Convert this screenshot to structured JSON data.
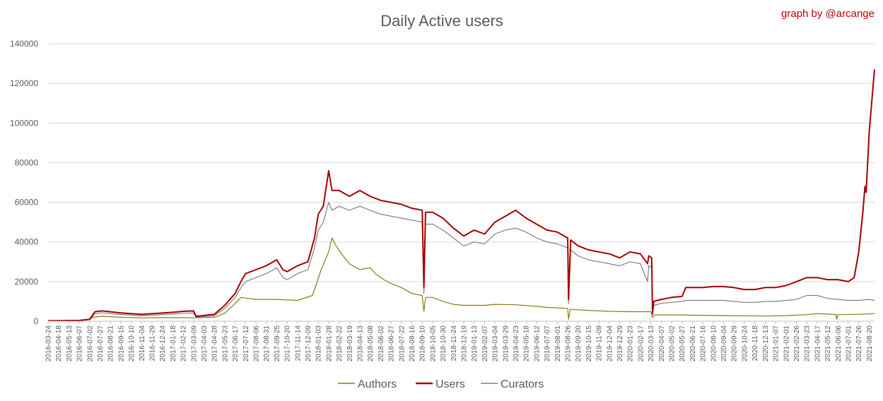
{
  "chart_data": {
    "type": "line",
    "title": "Daily Active users",
    "credit": "graph by @arcange",
    "xlabel": "",
    "ylabel": "",
    "ylim": [
      0,
      140000
    ],
    "y_ticks": [
      0,
      20000,
      40000,
      60000,
      80000,
      100000,
      120000,
      140000
    ],
    "grid": true,
    "legend_position": "bottom",
    "x_tick_labels": [
      "2016-03-24",
      "2016-04-18",
      "2016-05-13",
      "2016-06-07",
      "2016-07-02",
      "2016-07-27",
      "2016-08-21",
      "2016-09-15",
      "2016-10-10",
      "2016-11-04",
      "2016-11-29",
      "2016-12-24",
      "2017-01-18",
      "2017-02-12",
      "2017-03-09",
      "2017-04-03",
      "2017-04-28",
      "2017-05-23",
      "2017-06-17",
      "2017-07-12",
      "2017-08-06",
      "2017-08-31",
      "2017-09-25",
      "2017-10-20",
      "2017-11-14",
      "2017-12-09",
      "2018-01-03",
      "2018-01-28",
      "2018-02-22",
      "2018-03-19",
      "2018-04-13",
      "2018-05-08",
      "2018-06-02",
      "2018-06-27",
      "2018-07-22",
      "2018-08-16",
      "2018-09-10",
      "2018-10-05",
      "2018-10-30",
      "2018-11-24",
      "2018-12-19",
      "2019-01-13",
      "2019-02-07",
      "2019-03-04",
      "2019-03-29",
      "2019-04-23",
      "2019-05-18",
      "2019-06-12",
      "2019-07-07",
      "2019-08-01",
      "2019-08-26",
      "2019-09-20",
      "2019-10-15",
      "2019-11-09",
      "2019-12-04",
      "2019-12-29",
      "2020-01-23",
      "2020-02-17",
      "2020-03-13",
      "2020-04-07",
      "2020-05-02",
      "2020-05-27",
      "2020-06-21",
      "2020-07-16",
      "2020-08-10",
      "2020-09-04",
      "2020-09-29",
      "2020-10-24",
      "2020-11-18",
      "2020-12-13",
      "2021-01-07",
      "2021-02-01",
      "2021-02-26",
      "2021-03-23",
      "2021-04-17",
      "2021-05-12",
      "2021-06-06",
      "2021-07-01",
      "2021-07-26",
      "2021-08-20"
    ],
    "x_start": "2016-03-24",
    "x_end": "2021-09-02",
    "series": [
      {
        "name": "Authors",
        "color": "#8b7a14",
        "points": [
          [
            "2016-03-24",
            100
          ],
          [
            "2016-06-07",
            300
          ],
          [
            "2016-07-02",
            800
          ],
          [
            "2016-07-10",
            2000
          ],
          [
            "2016-08-01",
            2500
          ],
          [
            "2016-09-15",
            2000
          ],
          [
            "2016-11-04",
            1700
          ],
          [
            "2017-01-18",
            1800
          ],
          [
            "2017-03-09",
            1700
          ],
          [
            "2017-04-28",
            2000
          ],
          [
            "2017-05-23",
            4000
          ],
          [
            "2017-06-17",
            9000
          ],
          [
            "2017-07-01",
            12000
          ],
          [
            "2017-08-06",
            11000
          ],
          [
            "2017-09-25",
            11000
          ],
          [
            "2017-11-14",
            10500
          ],
          [
            "2017-12-20",
            13000
          ],
          [
            "2018-01-10",
            26000
          ],
          [
            "2018-01-28",
            35000
          ],
          [
            "2018-02-05",
            42000
          ],
          [
            "2018-02-15",
            38000
          ],
          [
            "2018-02-28",
            34000
          ],
          [
            "2018-03-19",
            29000
          ],
          [
            "2018-04-13",
            26000
          ],
          [
            "2018-05-08",
            27000
          ],
          [
            "2018-05-20",
            24000
          ],
          [
            "2018-06-10",
            21000
          ],
          [
            "2018-06-27",
            19000
          ],
          [
            "2018-07-22",
            17000
          ],
          [
            "2018-08-16",
            14000
          ],
          [
            "2018-09-10",
            13000
          ],
          [
            "2018-09-14",
            5000
          ],
          [
            "2018-09-18",
            12000
          ],
          [
            "2018-10-05",
            12000
          ],
          [
            "2018-10-30",
            10000
          ],
          [
            "2018-11-24",
            8500
          ],
          [
            "2018-12-19",
            8000
          ],
          [
            "2019-01-13",
            8000
          ],
          [
            "2019-02-07",
            8000
          ],
          [
            "2019-03-04",
            8500
          ],
          [
            "2019-04-23",
            8300
          ],
          [
            "2019-06-12",
            7500
          ],
          [
            "2019-07-07",
            7000
          ],
          [
            "2019-08-26",
            6500
          ],
          [
            "2019-08-28",
            1000
          ],
          [
            "2019-09-01",
            6000
          ],
          [
            "2019-10-15",
            5500
          ],
          [
            "2019-12-04",
            5000
          ],
          [
            "2020-01-23",
            4800
          ],
          [
            "2020-03-13",
            4800
          ],
          [
            "2020-03-17",
            2000
          ],
          [
            "2020-03-22",
            3200
          ],
          [
            "2020-05-02",
            3200
          ],
          [
            "2020-07-16",
            3000
          ],
          [
            "2020-09-29",
            2800
          ],
          [
            "2020-12-13",
            2600
          ],
          [
            "2021-02-01",
            2800
          ],
          [
            "2021-03-23",
            3300
          ],
          [
            "2021-04-17",
            3800
          ],
          [
            "2021-05-12",
            3600
          ],
          [
            "2021-06-01",
            3400
          ],
          [
            "2021-06-03",
            1000
          ],
          [
            "2021-06-06",
            3300
          ],
          [
            "2021-07-26",
            3500
          ],
          [
            "2021-09-02",
            3800
          ]
        ]
      },
      {
        "name": "Users",
        "color": "#a50000",
        "points": [
          [
            "2016-03-24",
            200
          ],
          [
            "2016-06-07",
            400
          ],
          [
            "2016-07-02",
            1000
          ],
          [
            "2016-07-15",
            4800
          ],
          [
            "2016-08-01",
            5200
          ],
          [
            "2016-09-15",
            4200
          ],
          [
            "2016-11-04",
            3500
          ],
          [
            "2017-01-18",
            4500
          ],
          [
            "2017-02-12",
            5000
          ],
          [
            "2017-03-09",
            5200
          ],
          [
            "2017-03-15",
            2500
          ],
          [
            "2017-04-28",
            3500
          ],
          [
            "2017-05-23",
            8000
          ],
          [
            "2017-06-17",
            14000
          ],
          [
            "2017-07-01",
            20000
          ],
          [
            "2017-07-12",
            24000
          ],
          [
            "2017-08-06",
            26000
          ],
          [
            "2017-08-31",
            28000
          ],
          [
            "2017-09-25",
            31000
          ],
          [
            "2017-10-10",
            26000
          ],
          [
            "2017-10-20",
            25000
          ],
          [
            "2017-11-14",
            28000
          ],
          [
            "2017-12-09",
            30000
          ],
          [
            "2017-12-25",
            42000
          ],
          [
            "2018-01-03",
            54000
          ],
          [
            "2018-01-15",
            58000
          ],
          [
            "2018-01-28",
            76000
          ],
          [
            "2018-02-05",
            66000
          ],
          [
            "2018-02-22",
            66000
          ],
          [
            "2018-03-19",
            63000
          ],
          [
            "2018-04-13",
            66000
          ],
          [
            "2018-05-08",
            63000
          ],
          [
            "2018-06-02",
            61000
          ],
          [
            "2018-06-27",
            60000
          ],
          [
            "2018-07-22",
            59000
          ],
          [
            "2018-08-16",
            57000
          ],
          [
            "2018-09-10",
            56000
          ],
          [
            "2018-09-14",
            17000
          ],
          [
            "2018-09-18",
            55000
          ],
          [
            "2018-10-05",
            55000
          ],
          [
            "2018-10-30",
            52000
          ],
          [
            "2018-11-24",
            47000
          ],
          [
            "2018-12-19",
            43000
          ],
          [
            "2019-01-13",
            46000
          ],
          [
            "2019-02-07",
            44000
          ],
          [
            "2019-03-04",
            50000
          ],
          [
            "2019-03-29",
            53000
          ],
          [
            "2019-04-23",
            56000
          ],
          [
            "2019-05-18",
            52000
          ],
          [
            "2019-06-12",
            49000
          ],
          [
            "2019-07-07",
            46000
          ],
          [
            "2019-08-01",
            45000
          ],
          [
            "2019-08-26",
            42000
          ],
          [
            "2019-08-28",
            11000
          ],
          [
            "2019-09-02",
            41000
          ],
          [
            "2019-09-20",
            38000
          ],
          [
            "2019-10-15",
            36000
          ],
          [
            "2019-11-09",
            35000
          ],
          [
            "2019-12-04",
            34000
          ],
          [
            "2019-12-29",
            32000
          ],
          [
            "2020-01-23",
            35000
          ],
          [
            "2020-02-17",
            34000
          ],
          [
            "2020-03-05",
            29000
          ],
          [
            "2020-03-08",
            33000
          ],
          [
            "2020-03-15",
            32000
          ],
          [
            "2020-03-17",
            4000
          ],
          [
            "2020-03-20",
            10000
          ],
          [
            "2020-04-07",
            11000
          ],
          [
            "2020-05-02",
            12000
          ],
          [
            "2020-05-27",
            12500
          ],
          [
            "2020-06-05",
            17000
          ],
          [
            "2020-07-16",
            17000
          ],
          [
            "2020-08-10",
            17500
          ],
          [
            "2020-09-04",
            17500
          ],
          [
            "2020-09-29",
            17000
          ],
          [
            "2020-10-24",
            16000
          ],
          [
            "2020-11-18",
            16000
          ],
          [
            "2020-12-13",
            17000
          ],
          [
            "2021-01-07",
            17000
          ],
          [
            "2021-02-01",
            18000
          ],
          [
            "2021-02-26",
            20000
          ],
          [
            "2021-03-23",
            22000
          ],
          [
            "2021-04-17",
            22000
          ],
          [
            "2021-05-12",
            21000
          ],
          [
            "2021-06-06",
            21000
          ],
          [
            "2021-07-01",
            20000
          ],
          [
            "2021-07-15",
            22000
          ],
          [
            "2021-07-26",
            35000
          ],
          [
            "2021-08-05",
            55000
          ],
          [
            "2021-08-10",
            68000
          ],
          [
            "2021-08-13",
            65000
          ],
          [
            "2021-08-20",
            95000
          ],
          [
            "2021-08-28",
            115000
          ],
          [
            "2021-09-02",
            127000
          ]
        ]
      },
      {
        "name": "Curators",
        "color": "#7f7f7f",
        "points": [
          [
            "2016-03-24",
            150
          ],
          [
            "2016-06-07",
            300
          ],
          [
            "2016-07-02",
            900
          ],
          [
            "2016-07-15",
            3800
          ],
          [
            "2016-08-01",
            4200
          ],
          [
            "2016-09-15",
            3400
          ],
          [
            "2016-11-04",
            2800
          ],
          [
            "2017-01-18",
            3600
          ],
          [
            "2017-02-12",
            4000
          ],
          [
            "2017-03-09",
            4200
          ],
          [
            "2017-03-15",
            2000
          ],
          [
            "2017-04-28",
            2800
          ],
          [
            "2017-05-23",
            6500
          ],
          [
            "2017-06-17",
            12000
          ],
          [
            "2017-07-01",
            17000
          ],
          [
            "2017-07-12",
            20000
          ],
          [
            "2017-08-06",
            22000
          ],
          [
            "2017-08-31",
            24000
          ],
          [
            "2017-09-25",
            27000
          ],
          [
            "2017-10-10",
            22000
          ],
          [
            "2017-10-20",
            21000
          ],
          [
            "2017-11-14",
            24000
          ],
          [
            "2017-12-09",
            26000
          ],
          [
            "2017-12-25",
            37000
          ],
          [
            "2018-01-03",
            46000
          ],
          [
            "2018-01-15",
            50000
          ],
          [
            "2018-01-28",
            60000
          ],
          [
            "2018-02-05",
            56000
          ],
          [
            "2018-02-22",
            58000
          ],
          [
            "2018-03-19",
            56000
          ],
          [
            "2018-04-13",
            58000
          ],
          [
            "2018-05-08",
            56000
          ],
          [
            "2018-06-02",
            54000
          ],
          [
            "2018-06-27",
            53000
          ],
          [
            "2018-07-22",
            52000
          ],
          [
            "2018-08-16",
            51000
          ],
          [
            "2018-09-10",
            50000
          ],
          [
            "2018-09-14",
            14000
          ],
          [
            "2018-09-18",
            49000
          ],
          [
            "2018-10-05",
            49000
          ],
          [
            "2018-10-30",
            46000
          ],
          [
            "2018-11-24",
            42000
          ],
          [
            "2018-12-19",
            38000
          ],
          [
            "2019-01-13",
            40000
          ],
          [
            "2019-02-07",
            39000
          ],
          [
            "2019-03-04",
            44000
          ],
          [
            "2019-03-29",
            46000
          ],
          [
            "2019-04-23",
            47000
          ],
          [
            "2019-05-18",
            45000
          ],
          [
            "2019-06-12",
            42000
          ],
          [
            "2019-07-07",
            40000
          ],
          [
            "2019-08-01",
            39000
          ],
          [
            "2019-08-26",
            37000
          ],
          [
            "2019-08-28",
            9000
          ],
          [
            "2019-09-02",
            36000
          ],
          [
            "2019-09-20",
            33000
          ],
          [
            "2019-10-15",
            31000
          ],
          [
            "2019-11-09",
            30000
          ],
          [
            "2019-12-04",
            29000
          ],
          [
            "2019-12-29",
            28000
          ],
          [
            "2020-01-23",
            30000
          ],
          [
            "2020-02-17",
            29000
          ],
          [
            "2020-03-05",
            20000
          ],
          [
            "2020-03-08",
            28000
          ],
          [
            "2020-03-15",
            27000
          ],
          [
            "2020-03-17",
            3000
          ],
          [
            "2020-03-20",
            8000
          ],
          [
            "2020-04-07",
            9000
          ],
          [
            "2020-05-02",
            9500
          ],
          [
            "2020-05-27",
            10000
          ],
          [
            "2020-06-05",
            10500
          ],
          [
            "2020-07-16",
            10500
          ],
          [
            "2020-08-10",
            10500
          ],
          [
            "2020-09-04",
            10500
          ],
          [
            "2020-09-29",
            10000
          ],
          [
            "2020-10-24",
            9500
          ],
          [
            "2020-11-18",
            9500
          ],
          [
            "2020-12-13",
            10000
          ],
          [
            "2021-01-07",
            10000
          ],
          [
            "2021-02-01",
            10500
          ],
          [
            "2021-02-26",
            11000
          ],
          [
            "2021-03-23",
            13000
          ],
          [
            "2021-04-17",
            13000
          ],
          [
            "2021-05-12",
            11500
          ],
          [
            "2021-06-06",
            11000
          ],
          [
            "2021-07-01",
            10500
          ],
          [
            "2021-07-26",
            10500
          ],
          [
            "2021-08-20",
            11000
          ],
          [
            "2021-09-02",
            10500
          ]
        ]
      }
    ]
  }
}
